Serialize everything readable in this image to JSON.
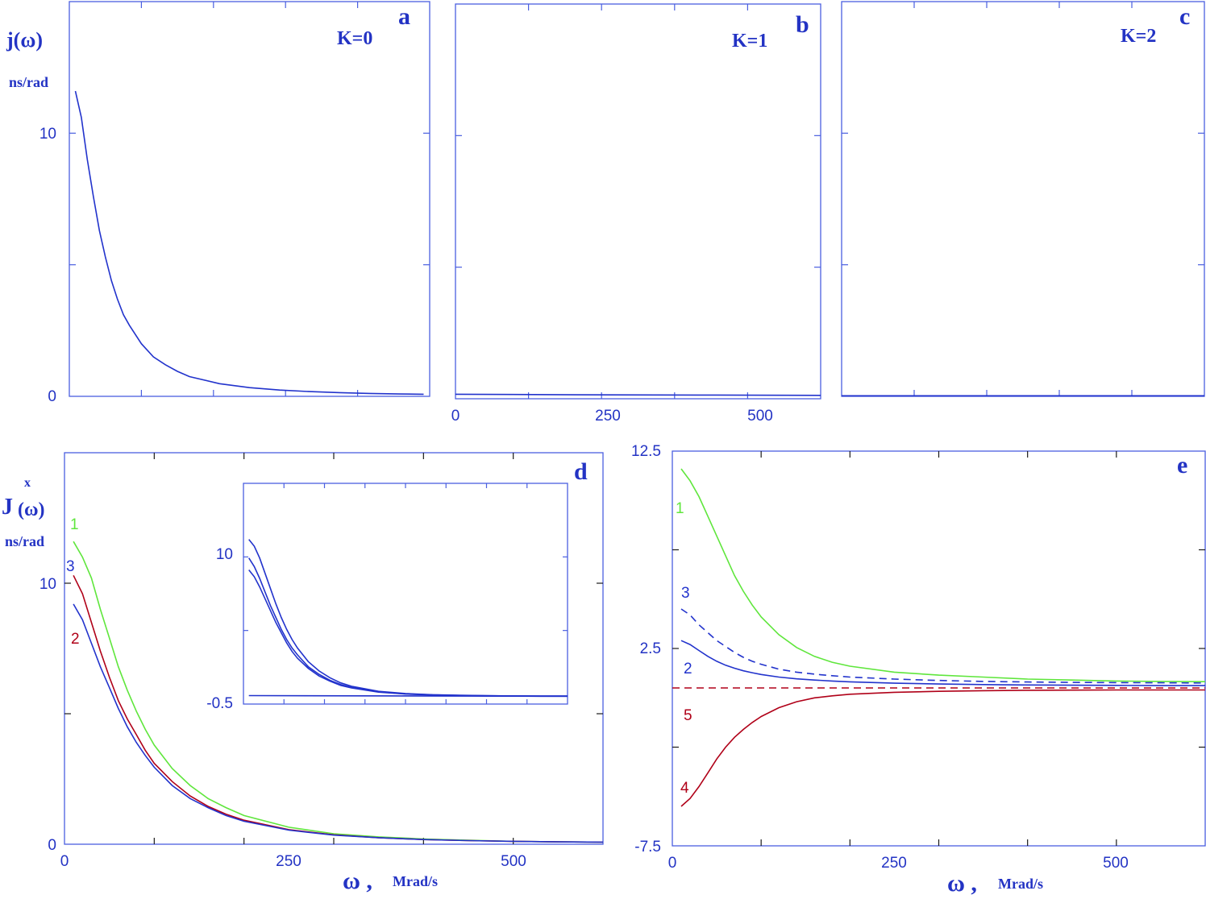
{
  "colors": {
    "axis": "#4a5fe0",
    "text": "#2333c4",
    "blue": "#2233cc",
    "green": "#5fe63c",
    "red": "#b00018"
  },
  "chart_data": [
    {
      "id": "a",
      "type": "line",
      "panel_letter": "a",
      "annotation": "K=0",
      "ylabel": "j(ω)",
      "yunit": "ns/rad",
      "xlim": [
        0,
        600
      ],
      "ylim": [
        0,
        15
      ],
      "yticks": [
        0,
        10
      ],
      "xticks": [],
      "series": [
        {
          "color": "blue",
          "dash": false,
          "x": [
            10,
            20,
            30,
            40,
            50,
            60,
            70,
            80,
            90,
            100,
            120,
            140,
            160,
            180,
            200,
            250,
            300,
            350,
            400,
            450,
            500,
            550,
            590
          ],
          "y": [
            11.6,
            10.6,
            9.0,
            7.6,
            6.3,
            5.3,
            4.4,
            3.7,
            3.1,
            2.7,
            2.0,
            1.5,
            1.2,
            0.95,
            0.75,
            0.48,
            0.33,
            0.24,
            0.18,
            0.14,
            0.11,
            0.09,
            0.08
          ]
        }
      ]
    },
    {
      "id": "b",
      "type": "line",
      "panel_letter": "b",
      "annotation": "K=1",
      "xlim": [
        0,
        600
      ],
      "ylim": [
        0,
        15
      ],
      "yticks": [],
      "xticks": [
        0,
        250,
        500
      ],
      "series": [
        {
          "color": "blue",
          "dash": false,
          "x": [
            0,
            200,
            400,
            600
          ],
          "y": [
            0.17,
            0.15,
            0.14,
            0.13
          ]
        }
      ]
    },
    {
      "id": "c",
      "type": "line",
      "panel_letter": "c",
      "annotation": "K=2",
      "xlim": [
        0,
        600
      ],
      "ylim": [
        0,
        15
      ],
      "yticks": [],
      "xticks": [],
      "series": [
        {
          "color": "blue",
          "dash": false,
          "x": [
            0,
            600
          ],
          "y": [
            0.02,
            0.02
          ]
        }
      ]
    },
    {
      "id": "d",
      "type": "line",
      "panel_letter": "d",
      "ylabel": "J",
      "ylabel_sup": "x",
      "ylabel_arg": "(ω)",
      "yunit": "ns/rad",
      "xlabel": "ω ,",
      "xunit": "Mrad/s",
      "xlim": [
        0,
        600
      ],
      "ylim": [
        0,
        15
      ],
      "yticks": [
        0,
        10
      ],
      "xticks": [
        0,
        250,
        500
      ],
      "series": [
        {
          "name": "1",
          "color": "green",
          "dash": false,
          "x": [
            10,
            20,
            30,
            40,
            50,
            60,
            70,
            80,
            90,
            100,
            120,
            140,
            160,
            180,
            200,
            250,
            300,
            350,
            400,
            450,
            500,
            550,
            600
          ],
          "y": [
            11.6,
            11.0,
            10.2,
            9.0,
            7.9,
            6.8,
            5.9,
            5.1,
            4.4,
            3.8,
            2.9,
            2.25,
            1.75,
            1.4,
            1.1,
            0.65,
            0.4,
            0.28,
            0.2,
            0.15,
            0.11,
            0.09,
            0.08
          ]
        },
        {
          "name": "2",
          "color": "red",
          "dash": false,
          "x": [
            10,
            20,
            30,
            40,
            50,
            60,
            70,
            80,
            90,
            100,
            120,
            140,
            160,
            180,
            200,
            250,
            300,
            350,
            400,
            450,
            500,
            550,
            600
          ],
          "y": [
            10.3,
            9.6,
            8.5,
            7.4,
            6.4,
            5.5,
            4.8,
            4.2,
            3.6,
            3.1,
            2.4,
            1.85,
            1.45,
            1.15,
            0.92,
            0.56,
            0.36,
            0.25,
            0.18,
            0.14,
            0.11,
            0.09,
            0.08
          ]
        },
        {
          "name": "3",
          "color": "blue",
          "dash": false,
          "x": [
            10,
            20,
            30,
            40,
            50,
            60,
            70,
            80,
            90,
            100,
            120,
            140,
            160,
            180,
            200,
            250,
            300,
            350,
            400,
            450,
            500,
            550,
            600
          ],
          "y": [
            9.2,
            8.6,
            7.7,
            6.8,
            6.0,
            5.2,
            4.5,
            3.9,
            3.4,
            2.95,
            2.25,
            1.75,
            1.4,
            1.1,
            0.88,
            0.54,
            0.35,
            0.25,
            0.18,
            0.14,
            0.11,
            0.09,
            0.08
          ]
        }
      ],
      "series_labels": [
        {
          "text": "1",
          "color": "green"
        },
        {
          "text": "3",
          "color": "blue"
        },
        {
          "text": "2",
          "color": "red"
        }
      ],
      "inset": {
        "xlim": [
          0,
          600
        ],
        "ylim": [
          -0.5,
          12.5
        ],
        "yticks": [
          -0.5,
          10
        ],
        "series": [
          {
            "color": "blue",
            "x": [
              10,
              20,
              30,
              40,
              50,
              60,
              70,
              80,
              90,
              100,
              120,
              140,
              160,
              180,
              200,
              250,
              300,
              350,
              400,
              450,
              500,
              550,
              600
            ],
            "y": [
              9.2,
              8.8,
              8.1,
              7.2,
              6.3,
              5.4,
              4.6,
              3.9,
              3.3,
              2.8,
              2.0,
              1.45,
              1.05,
              0.75,
              0.55,
              0.25,
              0.12,
              0.05,
              0.02,
              0.0,
              -0.02,
              -0.03,
              -0.03
            ]
          },
          {
            "color": "blue",
            "x": [
              10,
              20,
              30,
              40,
              50,
              60,
              70,
              80,
              90,
              100,
              120,
              140,
              160,
              180,
              200,
              250,
              300,
              350,
              400,
              450,
              500,
              550,
              600
            ],
            "y": [
              8.1,
              7.6,
              6.9,
              6.1,
              5.3,
              4.6,
              3.9,
              3.3,
              2.8,
              2.4,
              1.7,
              1.25,
              0.9,
              0.65,
              0.48,
              0.22,
              0.1,
              0.04,
              0.01,
              -0.01,
              -0.02,
              -0.03,
              -0.03
            ]
          },
          {
            "color": "blue",
            "x": [
              10,
              20,
              30,
              40,
              50,
              60,
              70,
              80,
              90,
              100,
              120,
              140,
              160,
              180,
              200,
              250,
              300,
              350,
              400,
              450,
              500,
              550,
              600
            ],
            "y": [
              7.4,
              7.0,
              6.4,
              5.7,
              5.0,
              4.3,
              3.7,
              3.1,
              2.6,
              2.2,
              1.6,
              1.15,
              0.85,
              0.6,
              0.45,
              0.2,
              0.09,
              0.03,
              0.0,
              -0.02,
              -0.03,
              -0.04,
              -0.04
            ]
          },
          {
            "color": "blue",
            "x": [
              10,
              600
            ],
            "y": [
              0.0,
              -0.04
            ]
          }
        ]
      }
    },
    {
      "id": "e",
      "type": "line",
      "panel_letter": "e",
      "xlabel": "ω ,",
      "xunit": "Mrad/s",
      "xlim": [
        0,
        600
      ],
      "ylim": [
        -7.5,
        12.5
      ],
      "yticks": [
        12.5,
        2.5,
        -7.5
      ],
      "xticks": [
        0,
        250,
        500
      ],
      "series": [
        {
          "name": "1",
          "color": "green",
          "dash": false,
          "x": [
            10,
            20,
            30,
            40,
            50,
            60,
            70,
            80,
            90,
            100,
            120,
            140,
            160,
            180,
            200,
            250,
            300,
            350,
            400,
            450,
            500,
            550,
            600
          ],
          "y": [
            11.6,
            11.0,
            10.2,
            9.2,
            8.2,
            7.2,
            6.2,
            5.4,
            4.7,
            4.1,
            3.2,
            2.55,
            2.1,
            1.8,
            1.6,
            1.3,
            1.15,
            1.05,
            0.95,
            0.9,
            0.85,
            0.83,
            0.82
          ]
        },
        {
          "name": "3",
          "color": "blue",
          "dash": true,
          "x": [
            10,
            20,
            30,
            40,
            50,
            60,
            70,
            80,
            90,
            100,
            120,
            140,
            160,
            180,
            200,
            250,
            300,
            350,
            400,
            450,
            500,
            550,
            600
          ],
          "y": [
            4.5,
            4.2,
            3.7,
            3.3,
            2.9,
            2.6,
            2.3,
            2.05,
            1.85,
            1.7,
            1.45,
            1.3,
            1.2,
            1.12,
            1.05,
            0.95,
            0.88,
            0.83,
            0.8,
            0.78,
            0.77,
            0.76,
            0.75
          ]
        },
        {
          "name": "2",
          "color": "blue",
          "dash": false,
          "x": [
            10,
            20,
            30,
            40,
            50,
            60,
            70,
            80,
            90,
            100,
            120,
            140,
            160,
            180,
            200,
            250,
            300,
            350,
            400,
            450,
            500,
            550,
            600
          ],
          "y": [
            2.9,
            2.7,
            2.4,
            2.1,
            1.85,
            1.65,
            1.5,
            1.37,
            1.27,
            1.18,
            1.05,
            0.96,
            0.9,
            0.85,
            0.81,
            0.74,
            0.7,
            0.67,
            0.65,
            0.64,
            0.63,
            0.62,
            0.62
          ]
        },
        {
          "name": "5",
          "color": "red",
          "dash": true,
          "x": [
            0,
            600
          ],
          "y": [
            0.5,
            0.5
          ]
        },
        {
          "name": "4",
          "color": "red",
          "dash": false,
          "x": [
            10,
            20,
            30,
            40,
            50,
            60,
            70,
            80,
            90,
            100,
            120,
            140,
            160,
            180,
            200,
            250,
            300,
            350,
            400,
            450,
            500,
            550,
            600
          ],
          "y": [
            -5.5,
            -5.1,
            -4.5,
            -3.8,
            -3.1,
            -2.5,
            -2.0,
            -1.6,
            -1.25,
            -0.95,
            -0.5,
            -0.2,
            0.0,
            0.1,
            0.18,
            0.28,
            0.33,
            0.36,
            0.38,
            0.39,
            0.4,
            0.4,
            0.4
          ]
        }
      ],
      "series_labels": [
        {
          "text": "1",
          "color": "green"
        },
        {
          "text": "3",
          "color": "blue"
        },
        {
          "text": "2",
          "color": "blue"
        },
        {
          "text": "5",
          "color": "red"
        },
        {
          "text": "4",
          "color": "red"
        }
      ]
    }
  ]
}
